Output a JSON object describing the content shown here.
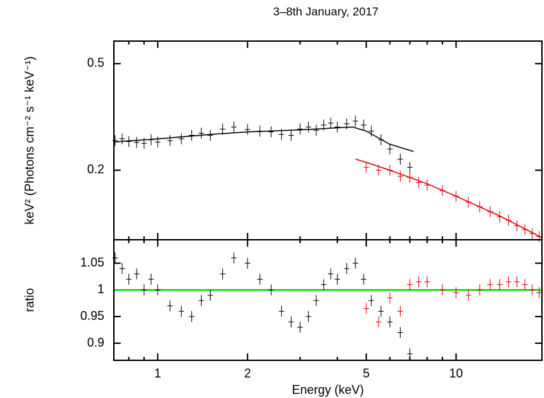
{
  "chart_data": [
    {
      "type": "scatter",
      "title": "3–8th January, 2017",
      "ylabel": "keV² (Photons cm⁻² s⁻¹ keV⁻¹)",
      "xscale": "log",
      "yscale": "log",
      "xlim": [
        0.713,
        19.4
      ],
      "ylim": [
        0.11,
        0.607
      ],
      "xticks": [
        1,
        2,
        5,
        10
      ],
      "xminorticks": [
        0.8,
        0.9,
        3,
        4,
        6,
        7,
        8,
        9
      ],
      "show_xtick_labels": false,
      "yticks": [
        0.2,
        0.5
      ],
      "series": [
        {
          "name": "black data",
          "mode": "markers",
          "color": "#000000",
          "x": [
            0.72,
            0.76,
            0.8,
            0.85,
            0.9,
            0.95,
            1.0,
            1.1,
            1.2,
            1.3,
            1.4,
            1.5,
            1.65,
            1.8,
            2.0,
            2.2,
            2.4,
            2.6,
            2.8,
            3.0,
            3.2,
            3.4,
            3.6,
            3.8,
            4.0,
            4.3,
            4.6,
            4.9,
            5.2,
            5.6,
            6.0,
            6.5,
            7.0
          ],
          "values": [
            0.258,
            0.262,
            0.256,
            0.254,
            0.252,
            0.26,
            0.255,
            0.258,
            0.262,
            0.27,
            0.275,
            0.27,
            0.285,
            0.29,
            0.284,
            0.28,
            0.278,
            0.272,
            0.27,
            0.285,
            0.29,
            0.282,
            0.295,
            0.3,
            0.29,
            0.298,
            0.305,
            0.295,
            0.28,
            0.26,
            0.24,
            0.22,
            0.205
          ]
        },
        {
          "name": "black model",
          "mode": "line",
          "color": "#000000",
          "x": [
            0.713,
            1.0,
            1.5,
            2.0,
            3.0,
            4.5,
            5.0,
            6.0,
            7.2
          ],
          "values": [
            0.255,
            0.262,
            0.272,
            0.278,
            0.283,
            0.29,
            0.28,
            0.25,
            0.235
          ]
        },
        {
          "name": "red data",
          "mode": "markers",
          "color": "#e00000",
          "x": [
            5,
            5.5,
            6,
            6.5,
            7,
            7.5,
            8,
            9,
            10,
            11,
            12,
            13,
            14,
            15,
            16,
            17,
            18,
            19
          ],
          "values": [
            0.205,
            0.2,
            0.2,
            0.19,
            0.188,
            0.18,
            0.176,
            0.168,
            0.16,
            0.152,
            0.146,
            0.14,
            0.134,
            0.13,
            0.124,
            0.12,
            0.116,
            0.113
          ]
        },
        {
          "name": "red model",
          "mode": "line",
          "color": "#e00000",
          "x": [
            4.6,
            5,
            6,
            8,
            10,
            14,
            19.4
          ],
          "values": [
            0.22,
            0.214,
            0.2,
            0.178,
            0.16,
            0.135,
            0.112
          ]
        }
      ]
    },
    {
      "type": "scatter",
      "xlabel": "Energy (keV)",
      "ylabel": "ratio",
      "xscale": "log",
      "yscale": "linear",
      "xlim": [
        0.713,
        19.4
      ],
      "ylim": [
        0.868,
        1.094
      ],
      "xticks": [
        1,
        2,
        5,
        10
      ],
      "xminorticks": [
        0.8,
        0.9,
        3,
        4,
        6,
        7,
        8,
        9
      ],
      "show_xtick_labels": true,
      "yticks": [
        0.9,
        0.95,
        1,
        1.05
      ],
      "reference_line": 1,
      "reference_color": "#00e000",
      "series": [
        {
          "name": "black ratio",
          "mode": "markers",
          "color": "#000000",
          "x": [
            0.72,
            0.76,
            0.8,
            0.85,
            0.9,
            0.95,
            1.0,
            1.1,
            1.2,
            1.3,
            1.4,
            1.5,
            1.65,
            1.8,
            2.0,
            2.2,
            2.4,
            2.6,
            2.8,
            3.0,
            3.2,
            3.4,
            3.6,
            3.8,
            4.0,
            4.3,
            4.6,
            4.9,
            5.2,
            5.6,
            6.0,
            6.5,
            7.0
          ],
          "values": [
            1.06,
            1.04,
            1.02,
            1.03,
            1.0,
            1.02,
            1.0,
            0.97,
            0.96,
            0.95,
            0.98,
            0.99,
            1.03,
            1.06,
            1.05,
            1.02,
            1.0,
            0.96,
            0.94,
            0.93,
            0.95,
            0.98,
            1.01,
            1.03,
            1.02,
            1.04,
            1.05,
            1.02,
            0.98,
            0.96,
            0.94,
            0.92,
            0.88
          ]
        },
        {
          "name": "red ratio",
          "mode": "markers",
          "color": "#e00000",
          "x": [
            5,
            5.5,
            6,
            6.5,
            7,
            7.5,
            8,
            9,
            10,
            11,
            12,
            13,
            14,
            15,
            16,
            17,
            18,
            19
          ],
          "values": [
            0.965,
            0.94,
            0.985,
            0.96,
            1.01,
            1.015,
            1.015,
            1.0,
            0.995,
            0.99,
            1.0,
            1.01,
            1.01,
            1.015,
            1.015,
            1.01,
            1.0,
            0.995
          ]
        }
      ]
    }
  ]
}
